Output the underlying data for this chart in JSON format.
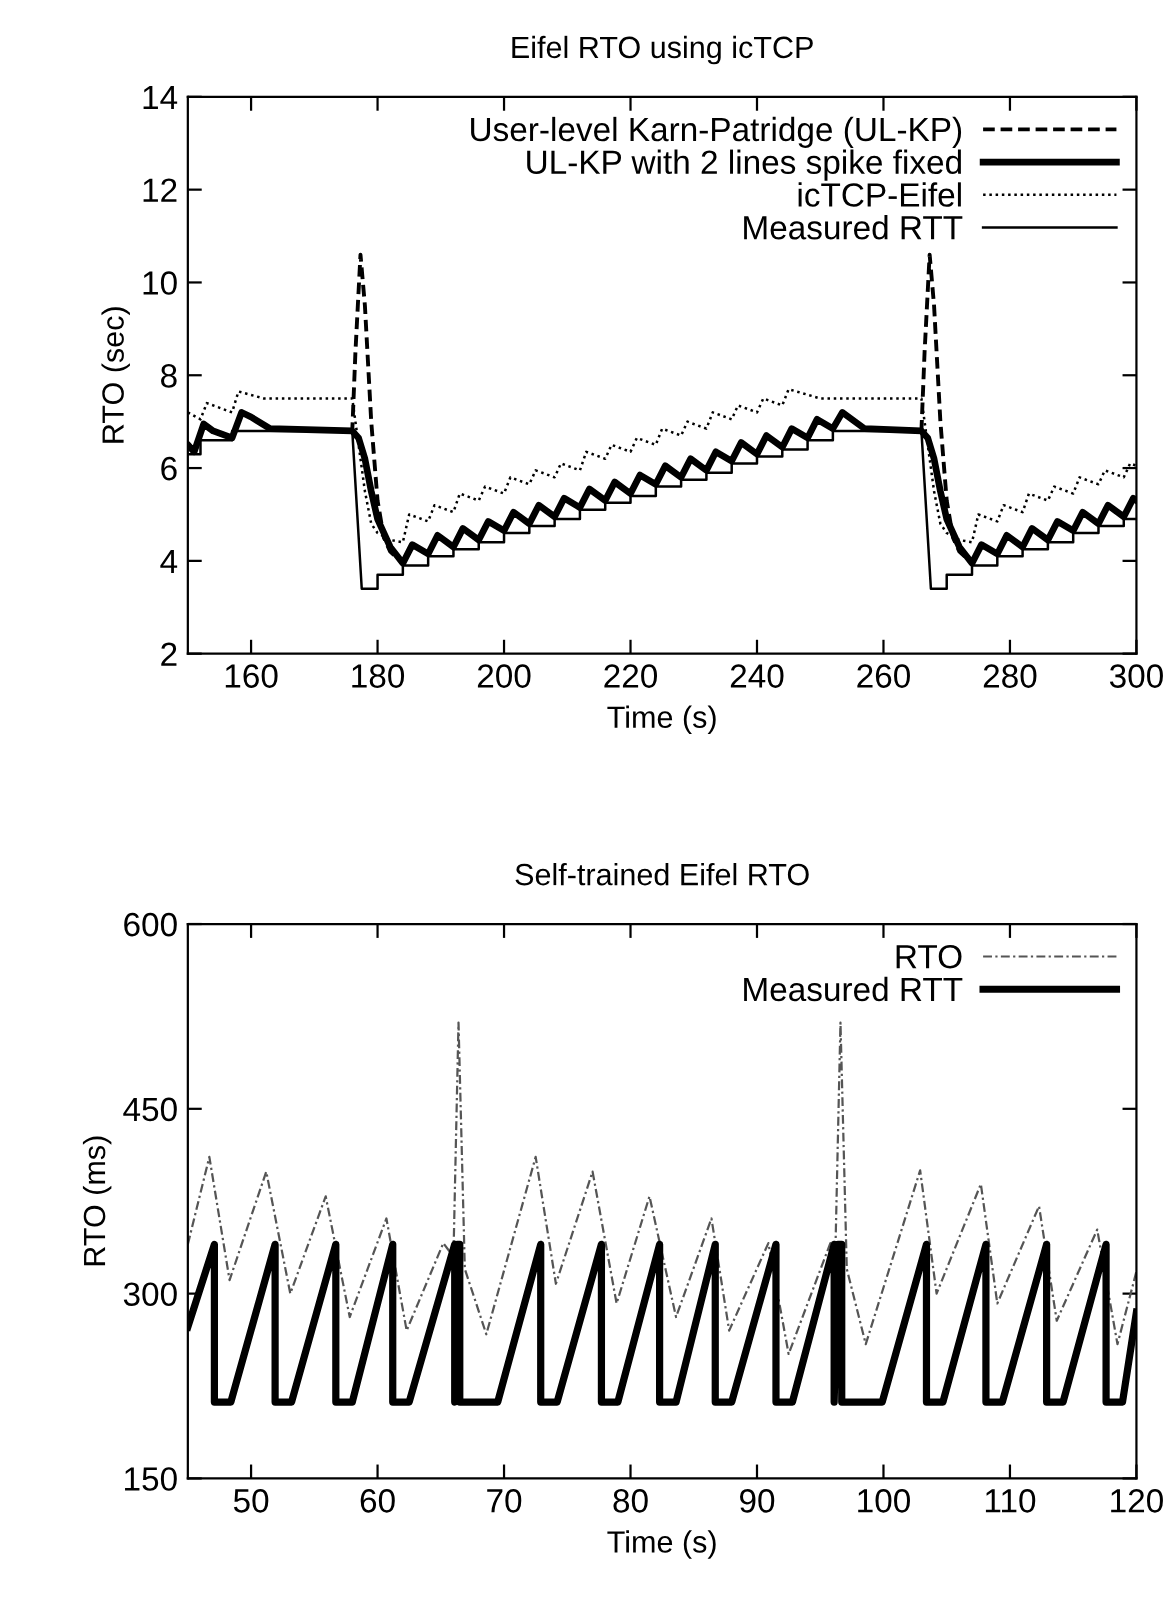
{
  "chart_data": [
    {
      "type": "line",
      "title": "Eifel RTO using icTCP",
      "xlabel": "Time (s)",
      "ylabel": "RTO (sec)",
      "xlim": [
        150,
        300
      ],
      "ylim": [
        2,
        14
      ],
      "xticks": [
        160,
        180,
        200,
        220,
        240,
        260,
        280,
        300
      ],
      "yticks": [
        2,
        4,
        6,
        8,
        10,
        12,
        14
      ],
      "grid": false,
      "legend": "top right",
      "series": [
        {
          "name": "User-level Karn-Patridge (UL-KP)",
          "color": "#000000",
          "line_style": "dashed",
          "x": [
            150,
            151,
            152.5,
            154,
            157,
            158.5,
            160,
            163,
            176,
            176.5,
            177.3,
            178,
            179,
            180,
            181,
            182,
            184,
            185.5,
            188,
            189.5,
            192,
            193.5,
            196,
            197.5,
            200,
            201.5,
            204,
            205.5,
            208,
            209.5,
            212,
            213.5,
            216,
            217.5,
            220,
            221.5,
            224,
            225.5,
            228,
            229.5,
            232,
            233.5,
            236,
            237.5,
            240,
            241.5,
            244,
            245.5,
            248,
            249.5,
            252,
            253.5,
            257,
            266,
            266.5,
            267.3,
            268,
            269,
            270,
            271,
            272,
            274,
            275.5,
            278,
            279.5,
            282,
            283.5,
            286,
            287.5,
            290,
            291.5,
            294,
            295.5,
            298,
            299.5,
            300
          ],
          "values": [
            6.5,
            6.35,
            6.95,
            6.8,
            6.65,
            7.2,
            7.1,
            6.85,
            6.8,
            8.5,
            10.6,
            9.5,
            7,
            5.3,
            4.5,
            4.2,
            3.95,
            4.35,
            4.15,
            4.55,
            4.3,
            4.7,
            4.45,
            4.85,
            4.65,
            5.05,
            4.8,
            5.2,
            4.95,
            5.35,
            5.15,
            5.55,
            5.3,
            5.7,
            5.45,
            5.85,
            5.65,
            6.05,
            5.8,
            6.2,
            5.95,
            6.35,
            6.15,
            6.55,
            6.3,
            6.7,
            6.45,
            6.85,
            6.65,
            7.05,
            6.85,
            7.2,
            6.85,
            6.8,
            8.5,
            10.6,
            9.5,
            7,
            5.3,
            4.5,
            4.2,
            3.95,
            4.35,
            4.15,
            4.55,
            4.3,
            4.7,
            4.45,
            4.85,
            4.65,
            5.05,
            4.8,
            5.2,
            4.95,
            5.35,
            5.3
          ]
        },
        {
          "name": "UL-KP with 2 lines spike fixed",
          "color": "#000000",
          "line_style": "solid",
          "x": [
            150,
            151,
            152.5,
            154,
            157,
            158.5,
            160,
            163,
            176,
            177,
            178,
            179,
            180,
            182,
            184,
            185.5,
            188,
            189.5,
            192,
            193.5,
            196,
            197.5,
            200,
            201.5,
            204,
            205.5,
            208,
            209.5,
            212,
            213.5,
            216,
            217.5,
            220,
            221.5,
            224,
            225.5,
            228,
            229.5,
            232,
            233.5,
            236,
            237.5,
            240,
            241.5,
            244,
            245.5,
            248,
            249.5,
            252,
            253.5,
            257,
            266,
            267,
            268,
            269,
            270,
            272,
            274,
            275.5,
            278,
            279.5,
            282,
            283.5,
            286,
            287.5,
            290,
            291.5,
            294,
            295.5,
            298,
            299.5,
            300
          ],
          "values": [
            6.5,
            6.35,
            6.95,
            6.8,
            6.65,
            7.2,
            7.1,
            6.85,
            6.8,
            6.65,
            6.2,
            5.5,
            4.9,
            4.3,
            3.95,
            4.35,
            4.15,
            4.55,
            4.3,
            4.7,
            4.45,
            4.85,
            4.65,
            5.05,
            4.8,
            5.2,
            4.95,
            5.35,
            5.15,
            5.55,
            5.3,
            5.7,
            5.45,
            5.85,
            5.65,
            6.05,
            5.8,
            6.2,
            5.95,
            6.35,
            6.15,
            6.55,
            6.3,
            6.7,
            6.45,
            6.85,
            6.65,
            7.05,
            6.85,
            7.2,
            6.85,
            6.8,
            6.65,
            6.2,
            5.5,
            4.9,
            4.3,
            3.95,
            4.35,
            4.15,
            4.55,
            4.3,
            4.7,
            4.45,
            4.85,
            4.65,
            5.05,
            4.8,
            5.2,
            4.95,
            5.35,
            5.3
          ]
        },
        {
          "name": "icTCP-Eifel",
          "color": "#000000",
          "line_style": "dotted",
          "x": [
            150,
            152,
            153,
            156,
            157,
            158,
            162,
            176,
            177,
            178,
            179,
            180,
            182,
            184,
            185,
            188,
            189,
            192,
            193,
            196,
            197,
            200,
            201,
            204,
            205,
            208,
            209,
            212,
            213,
            216,
            217,
            220,
            221,
            224,
            225,
            228,
            229,
            232,
            233,
            236,
            237,
            240,
            241,
            244,
            245,
            250,
            266,
            267,
            268,
            269,
            270,
            272,
            274,
            275,
            278,
            279,
            282,
            283,
            286,
            287,
            290,
            291,
            294,
            295,
            298,
            299,
            300
          ],
          "values": [
            7.2,
            7.05,
            7.4,
            7.25,
            7.2,
            7.65,
            7.5,
            7.5,
            6.5,
            5.5,
            4.8,
            4.6,
            4.45,
            4.4,
            5.0,
            4.85,
            5.2,
            5.05,
            5.45,
            5.3,
            5.6,
            5.45,
            5.8,
            5.65,
            5.95,
            5.8,
            6.1,
            5.95,
            6.35,
            6.2,
            6.5,
            6.35,
            6.65,
            6.5,
            6.85,
            6.7,
            7.0,
            6.85,
            7.2,
            7.05,
            7.35,
            7.2,
            7.5,
            7.35,
            7.7,
            7.5,
            7.5,
            6.5,
            5.5,
            4.8,
            4.6,
            4.45,
            4.4,
            5.0,
            4.85,
            5.2,
            5.05,
            5.45,
            5.3,
            5.6,
            5.45,
            5.8,
            5.65,
            5.95,
            5.8,
            6.1,
            6.05
          ]
        },
        {
          "name": "Measured RTT",
          "color": "#000000",
          "line_style": "solid",
          "x": [
            150,
            152,
            152,
            157,
            157,
            176,
            177.5,
            180,
            180,
            184,
            184,
            188,
            188,
            192,
            192,
            196,
            196,
            200,
            200,
            204,
            204,
            208,
            208,
            212,
            212,
            216,
            216,
            220,
            220,
            224,
            224,
            228,
            228,
            232,
            232,
            236,
            236,
            240,
            240,
            244,
            244,
            248,
            248,
            252,
            252,
            266,
            267.5,
            270,
            270,
            274,
            274,
            278,
            278,
            282,
            282,
            286,
            286,
            290,
            290,
            294,
            294,
            298,
            298,
            300
          ],
          "values": [
            6.3,
            6.3,
            6.6,
            6.6,
            6.8,
            6.8,
            3.4,
            3.4,
            3.7,
            3.7,
            3.9,
            3.9,
            4.1,
            4.1,
            4.25,
            4.25,
            4.4,
            4.4,
            4.6,
            4.6,
            4.75,
            4.75,
            4.9,
            4.9,
            5.1,
            5.1,
            5.25,
            5.25,
            5.4,
            5.4,
            5.6,
            5.6,
            5.75,
            5.75,
            5.9,
            5.9,
            6.1,
            6.1,
            6.25,
            6.25,
            6.4,
            6.4,
            6.6,
            6.6,
            6.8,
            6.8,
            3.4,
            3.4,
            3.7,
            3.7,
            3.9,
            3.9,
            4.1,
            4.1,
            4.25,
            4.25,
            4.4,
            4.4,
            4.6,
            4.6,
            4.75,
            4.75,
            4.9,
            4.9
          ]
        }
      ]
    },
    {
      "type": "line",
      "title": "Self-trained Eifel RTO",
      "xlabel": "Time (s)",
      "ylabel": "RTO (ms)",
      "xlim": [
        45,
        120
      ],
      "ylim": [
        150,
        600
      ],
      "xticks": [
        50,
        60,
        70,
        80,
        90,
        100,
        110,
        120
      ],
      "yticks": [
        150,
        300,
        450,
        600
      ],
      "grid": false,
      "legend": "top right",
      "series": [
        {
          "name": "RTO",
          "color": "#555555",
          "line_style": "dashdot",
          "x": [
            45,
            46.7,
            48.3,
            51.2,
            53.1,
            55.9,
            57.8,
            60.7,
            62.3,
            65.2,
            66,
            66.4,
            66.9,
            68.6,
            72.5,
            74.1,
            77,
            78.9,
            81.5,
            83.6,
            86.4,
            87.8,
            90.9,
            92.5,
            95.8,
            96.2,
            96.6,
            97.1,
            98.6,
            102.9,
            104.2,
            107.7,
            109,
            112.3,
            113.7,
            116.9,
            118.5,
            120
          ],
          "values": [
            340,
            411,
            311,
            399,
            300,
            379,
            281,
            361,
            270,
            341,
            330,
            520,
            320,
            267,
            411,
            308,
            399,
            292,
            379,
            281,
            361,
            270,
            341,
            251,
            341,
            335,
            520,
            320,
            259,
            400,
            300,
            389,
            292,
            371,
            278,
            352,
            259,
            318
          ]
        },
        {
          "name": "Measured RTT",
          "color": "#000000",
          "line_style": "solid",
          "x": [
            45,
            47.1,
            47.1,
            48.4,
            51.9,
            51.9,
            53.2,
            56.7,
            56.7,
            58,
            61.2,
            61.2,
            62.5,
            66.1,
            66.1,
            66.3,
            66.5,
            66.5,
            69.5,
            72.9,
            72.9,
            74.2,
            77.7,
            77.7,
            79,
            82.3,
            82.3,
            83.6,
            86.7,
            86.7,
            88,
            91.5,
            91.5,
            92.8,
            96.1,
            96.1,
            96.4,
            96.7,
            96.7,
            99.9,
            103.4,
            103.4,
            104.7,
            108.1,
            108.1,
            109.4,
            112.9,
            112.9,
            114.2,
            117.6,
            117.6,
            118.9,
            120
          ],
          "values": [
            273,
            340,
            212,
            212,
            340,
            212,
            212,
            340,
            212,
            212,
            340,
            212,
            212,
            340,
            212,
            340,
            340,
            212,
            212,
            340,
            212,
            212,
            340,
            212,
            212,
            340,
            212,
            212,
            340,
            212,
            212,
            340,
            212,
            212,
            340,
            212,
            340,
            340,
            212,
            212,
            340,
            212,
            212,
            340,
            212,
            212,
            340,
            212,
            212,
            340,
            212,
            212,
            285
          ]
        }
      ]
    }
  ]
}
